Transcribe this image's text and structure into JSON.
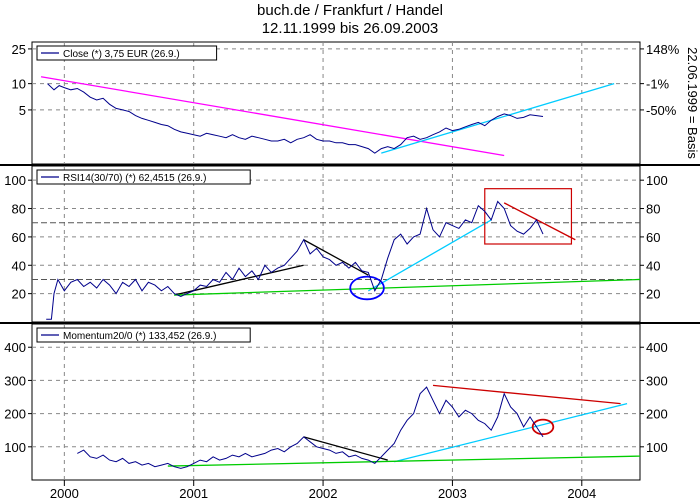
{
  "title": "buch.de / Frankfurt / Handel",
  "subtitle": "12.11.1999 bis 26.09.2003",
  "right_axis_label": "22.06.1999 = Basis",
  "colors": {
    "price": "#00008b",
    "magenta": "#ff00ff",
    "cyan": "#00ccff",
    "green": "#00cc00",
    "red": "#cc0000",
    "black": "#000000",
    "blue_ellipse": "#0000ff",
    "grid": "#888888"
  },
  "x_axis": {
    "ticks": [
      "2000",
      "2001",
      "2002",
      "2003",
      "2004"
    ],
    "tick_positions": [
      2000.0,
      2001.0,
      2002.0,
      2003.0,
      2004.0
    ],
    "range": [
      1999.75,
      2004.45
    ]
  },
  "chart_data": [
    {
      "type": "line",
      "legend": "Close (*) 3,75 EUR (26.9.)",
      "y_scale": "log",
      "ylim": [
        1.2,
        30
      ],
      "left_ticks": [
        25,
        10,
        5
      ],
      "right_ticks": [
        {
          "label": "148%",
          "at": 25
        },
        {
          "label": "-1%",
          "at": 10
        },
        {
          "label": "-50%",
          "at": 5
        }
      ],
      "series": [
        {
          "x": [
            1999.87,
            1999.92,
            1999.96,
            2000.0,
            2000.05,
            2000.1,
            2000.15,
            2000.2,
            2000.25,
            2000.3,
            2000.35,
            2000.4,
            2000.45,
            2000.5,
            2000.55,
            2000.6,
            2000.65,
            2000.7,
            2000.75,
            2000.8,
            2000.85,
            2000.9,
            2000.95,
            2001.0,
            2001.05,
            2001.1,
            2001.15,
            2001.2,
            2001.25,
            2001.3,
            2001.35,
            2001.4,
            2001.45,
            2001.5,
            2001.55,
            2001.6,
            2001.65,
            2001.7,
            2001.75,
            2001.8,
            2001.85,
            2001.9,
            2001.95,
            2002.0,
            2002.05,
            2002.1,
            2002.15,
            2002.2,
            2002.25,
            2002.3,
            2002.35,
            2002.4,
            2002.45,
            2002.5,
            2002.55,
            2002.6,
            2002.65,
            2002.7,
            2002.75,
            2002.8,
            2002.85,
            2002.9,
            2002.95,
            2003.0,
            2003.05,
            2003.1,
            2003.15,
            2003.2,
            2003.25,
            2003.3,
            2003.35,
            2003.4,
            2003.45,
            2003.5,
            2003.55,
            2003.6,
            2003.65,
            2003.7
          ],
          "values": [
            10,
            8.5,
            9.5,
            9.0,
            8.5,
            8.8,
            8.0,
            7.0,
            6.5,
            6.8,
            5.8,
            5.2,
            5.0,
            4.8,
            4.3,
            4.0,
            3.8,
            3.6,
            3.4,
            3.3,
            3.0,
            2.8,
            2.7,
            2.6,
            2.5,
            2.7,
            2.6,
            2.5,
            2.4,
            2.6,
            2.4,
            2.3,
            2.5,
            2.4,
            2.3,
            2.2,
            2.2,
            2.3,
            2.1,
            2.3,
            2.4,
            2.6,
            2.3,
            2.2,
            2.2,
            2.1,
            2.1,
            2.0,
            2.0,
            1.9,
            1.8,
            1.6,
            1.8,
            1.9,
            1.8,
            2.0,
            2.4,
            2.5,
            2.3,
            2.4,
            2.6,
            2.8,
            3.1,
            2.9,
            3.0,
            3.2,
            3.4,
            3.6,
            3.3,
            3.8,
            4.2,
            4.5,
            4.3,
            4.0,
            4.1,
            4.4,
            4.3,
            4.2
          ]
        }
      ],
      "trendlines": [
        {
          "color": "magenta",
          "x": [
            1999.82,
            2003.4
          ],
          "y": [
            12,
            1.5
          ]
        },
        {
          "color": "cyan",
          "x": [
            2002.45,
            2004.25
          ],
          "y": [
            1.6,
            10
          ]
        }
      ]
    },
    {
      "type": "line",
      "legend": "RSI14(30/70) (*) 62,4515 (26.9.)",
      "ylim": [
        0,
        110
      ],
      "left_ticks": [
        100,
        80,
        60,
        40,
        20
      ],
      "right_ticks": [
        100,
        80,
        60,
        40,
        20
      ],
      "dashed_levels": [
        30,
        70
      ],
      "series": [
        {
          "x": [
            1999.86,
            1999.9,
            1999.92,
            1999.95,
            2000.0,
            2000.05,
            2000.1,
            2000.15,
            2000.2,
            2000.25,
            2000.3,
            2000.35,
            2000.4,
            2000.45,
            2000.5,
            2000.55,
            2000.6,
            2000.65,
            2000.7,
            2000.75,
            2000.8,
            2000.85,
            2000.9,
            2000.95,
            2001.0,
            2001.05,
            2001.1,
            2001.15,
            2001.2,
            2001.25,
            2001.3,
            2001.35,
            2001.4,
            2001.45,
            2001.5,
            2001.55,
            2001.6,
            2001.65,
            2001.7,
            2001.75,
            2001.8,
            2001.85,
            2001.9,
            2001.95,
            2002.0,
            2002.05,
            2002.1,
            2002.15,
            2002.2,
            2002.25,
            2002.3,
            2002.35,
            2002.4,
            2002.45,
            2002.5,
            2002.55,
            2002.6,
            2002.65,
            2002.7,
            2002.75,
            2002.8,
            2002.85,
            2002.9,
            2002.95,
            2003.0,
            2003.05,
            2003.1,
            2003.15,
            2003.2,
            2003.25,
            2003.3,
            2003.35,
            2003.4,
            2003.45,
            2003.5,
            2003.55,
            2003.6,
            2003.65,
            2003.7
          ],
          "values": [
            2,
            2,
            20,
            30,
            22,
            28,
            30,
            25,
            28,
            24,
            30,
            26,
            20,
            28,
            25,
            30,
            22,
            28,
            26,
            22,
            25,
            20,
            18,
            20,
            22,
            26,
            25,
            30,
            28,
            35,
            30,
            38,
            32,
            36,
            30,
            40,
            35,
            38,
            40,
            45,
            50,
            58,
            48,
            52,
            46,
            44,
            40,
            42,
            38,
            42,
            36,
            35,
            22,
            30,
            45,
            58,
            62,
            55,
            60,
            62,
            80,
            65,
            60,
            70,
            68,
            66,
            72,
            70,
            82,
            78,
            72,
            85,
            80,
            68,
            64,
            62,
            66,
            72,
            62
          ]
        }
      ],
      "trendlines": [
        {
          "color": "black",
          "x": [
            2000.85,
            2001.85
          ],
          "y": [
            19,
            40
          ]
        },
        {
          "color": "black",
          "x": [
            2001.85,
            2002.35
          ],
          "y": [
            58,
            33
          ]
        },
        {
          "color": "cyan",
          "x": [
            2002.35,
            2003.3
          ],
          "y": [
            22,
            72
          ]
        },
        {
          "color": "red",
          "x": [
            2003.4,
            2003.95
          ],
          "y": [
            84,
            58
          ]
        },
        {
          "color": "green",
          "x": [
            2000.85,
            2004.45
          ],
          "y": [
            19,
            30
          ]
        }
      ],
      "rect": {
        "color": "red",
        "x": [
          2003.25,
          2003.92
        ],
        "y": [
          55,
          94
        ]
      },
      "ellipse": {
        "color": "blue_ellipse",
        "cx": 2002.34,
        "cy": 24,
        "rx": 0.13,
        "ry": 8
      }
    },
    {
      "type": "line",
      "legend": "Momentum20/0 (*) 133,452 (26.9.)",
      "ylim": [
        0,
        470
      ],
      "left_ticks": [
        400,
        300,
        200,
        100
      ],
      "right_ticks": [
        400,
        300,
        200,
        100
      ],
      "series": [
        {
          "x": [
            2000.1,
            2000.15,
            2000.2,
            2000.25,
            2000.3,
            2000.35,
            2000.4,
            2000.45,
            2000.5,
            2000.55,
            2000.6,
            2000.65,
            2000.7,
            2000.75,
            2000.8,
            2000.85,
            2000.9,
            2000.95,
            2001.0,
            2001.05,
            2001.1,
            2001.15,
            2001.2,
            2001.25,
            2001.3,
            2001.35,
            2001.4,
            2001.45,
            2001.5,
            2001.55,
            2001.6,
            2001.65,
            2001.7,
            2001.75,
            2001.8,
            2001.85,
            2001.9,
            2001.95,
            2002.0,
            2002.05,
            2002.1,
            2002.15,
            2002.2,
            2002.25,
            2002.3,
            2002.35,
            2002.4,
            2002.45,
            2002.5,
            2002.55,
            2002.6,
            2002.65,
            2002.7,
            2002.75,
            2002.8,
            2002.85,
            2002.9,
            2002.95,
            2003.0,
            2003.05,
            2003.1,
            2003.15,
            2003.2,
            2003.25,
            2003.3,
            2003.35,
            2003.4,
            2003.45,
            2003.5,
            2003.55,
            2003.6,
            2003.65,
            2003.7
          ],
          "values": [
            80,
            90,
            70,
            65,
            75,
            60,
            55,
            65,
            50,
            55,
            45,
            50,
            40,
            45,
            50,
            40,
            35,
            40,
            50,
            60,
            55,
            70,
            60,
            65,
            75,
            70,
            80,
            70,
            75,
            80,
            90,
            95,
            85,
            100,
            110,
            130,
            115,
            100,
            95,
            90,
            80,
            85,
            70,
            75,
            65,
            60,
            50,
            70,
            90,
            110,
            150,
            180,
            200,
            260,
            280,
            240,
            200,
            240,
            220,
            190,
            210,
            200,
            180,
            170,
            150,
            190,
            260,
            220,
            200,
            160,
            190,
            160,
            130
          ]
        }
      ],
      "trendlines": [
        {
          "color": "red",
          "x": [
            2002.85,
            2004.3
          ],
          "y": [
            285,
            230
          ]
        },
        {
          "color": "cyan",
          "x": [
            2002.55,
            2004.35
          ],
          "y": [
            55,
            230
          ]
        },
        {
          "color": "black",
          "x": [
            2001.85,
            2002.5
          ],
          "y": [
            130,
            60
          ]
        },
        {
          "color": "green",
          "x": [
            2000.8,
            2004.45
          ],
          "y": [
            42,
            72
          ]
        }
      ],
      "ellipse": {
        "color": "red",
        "cx": 2003.7,
        "cy": 160,
        "rx": 0.08,
        "ry": 22
      }
    }
  ]
}
